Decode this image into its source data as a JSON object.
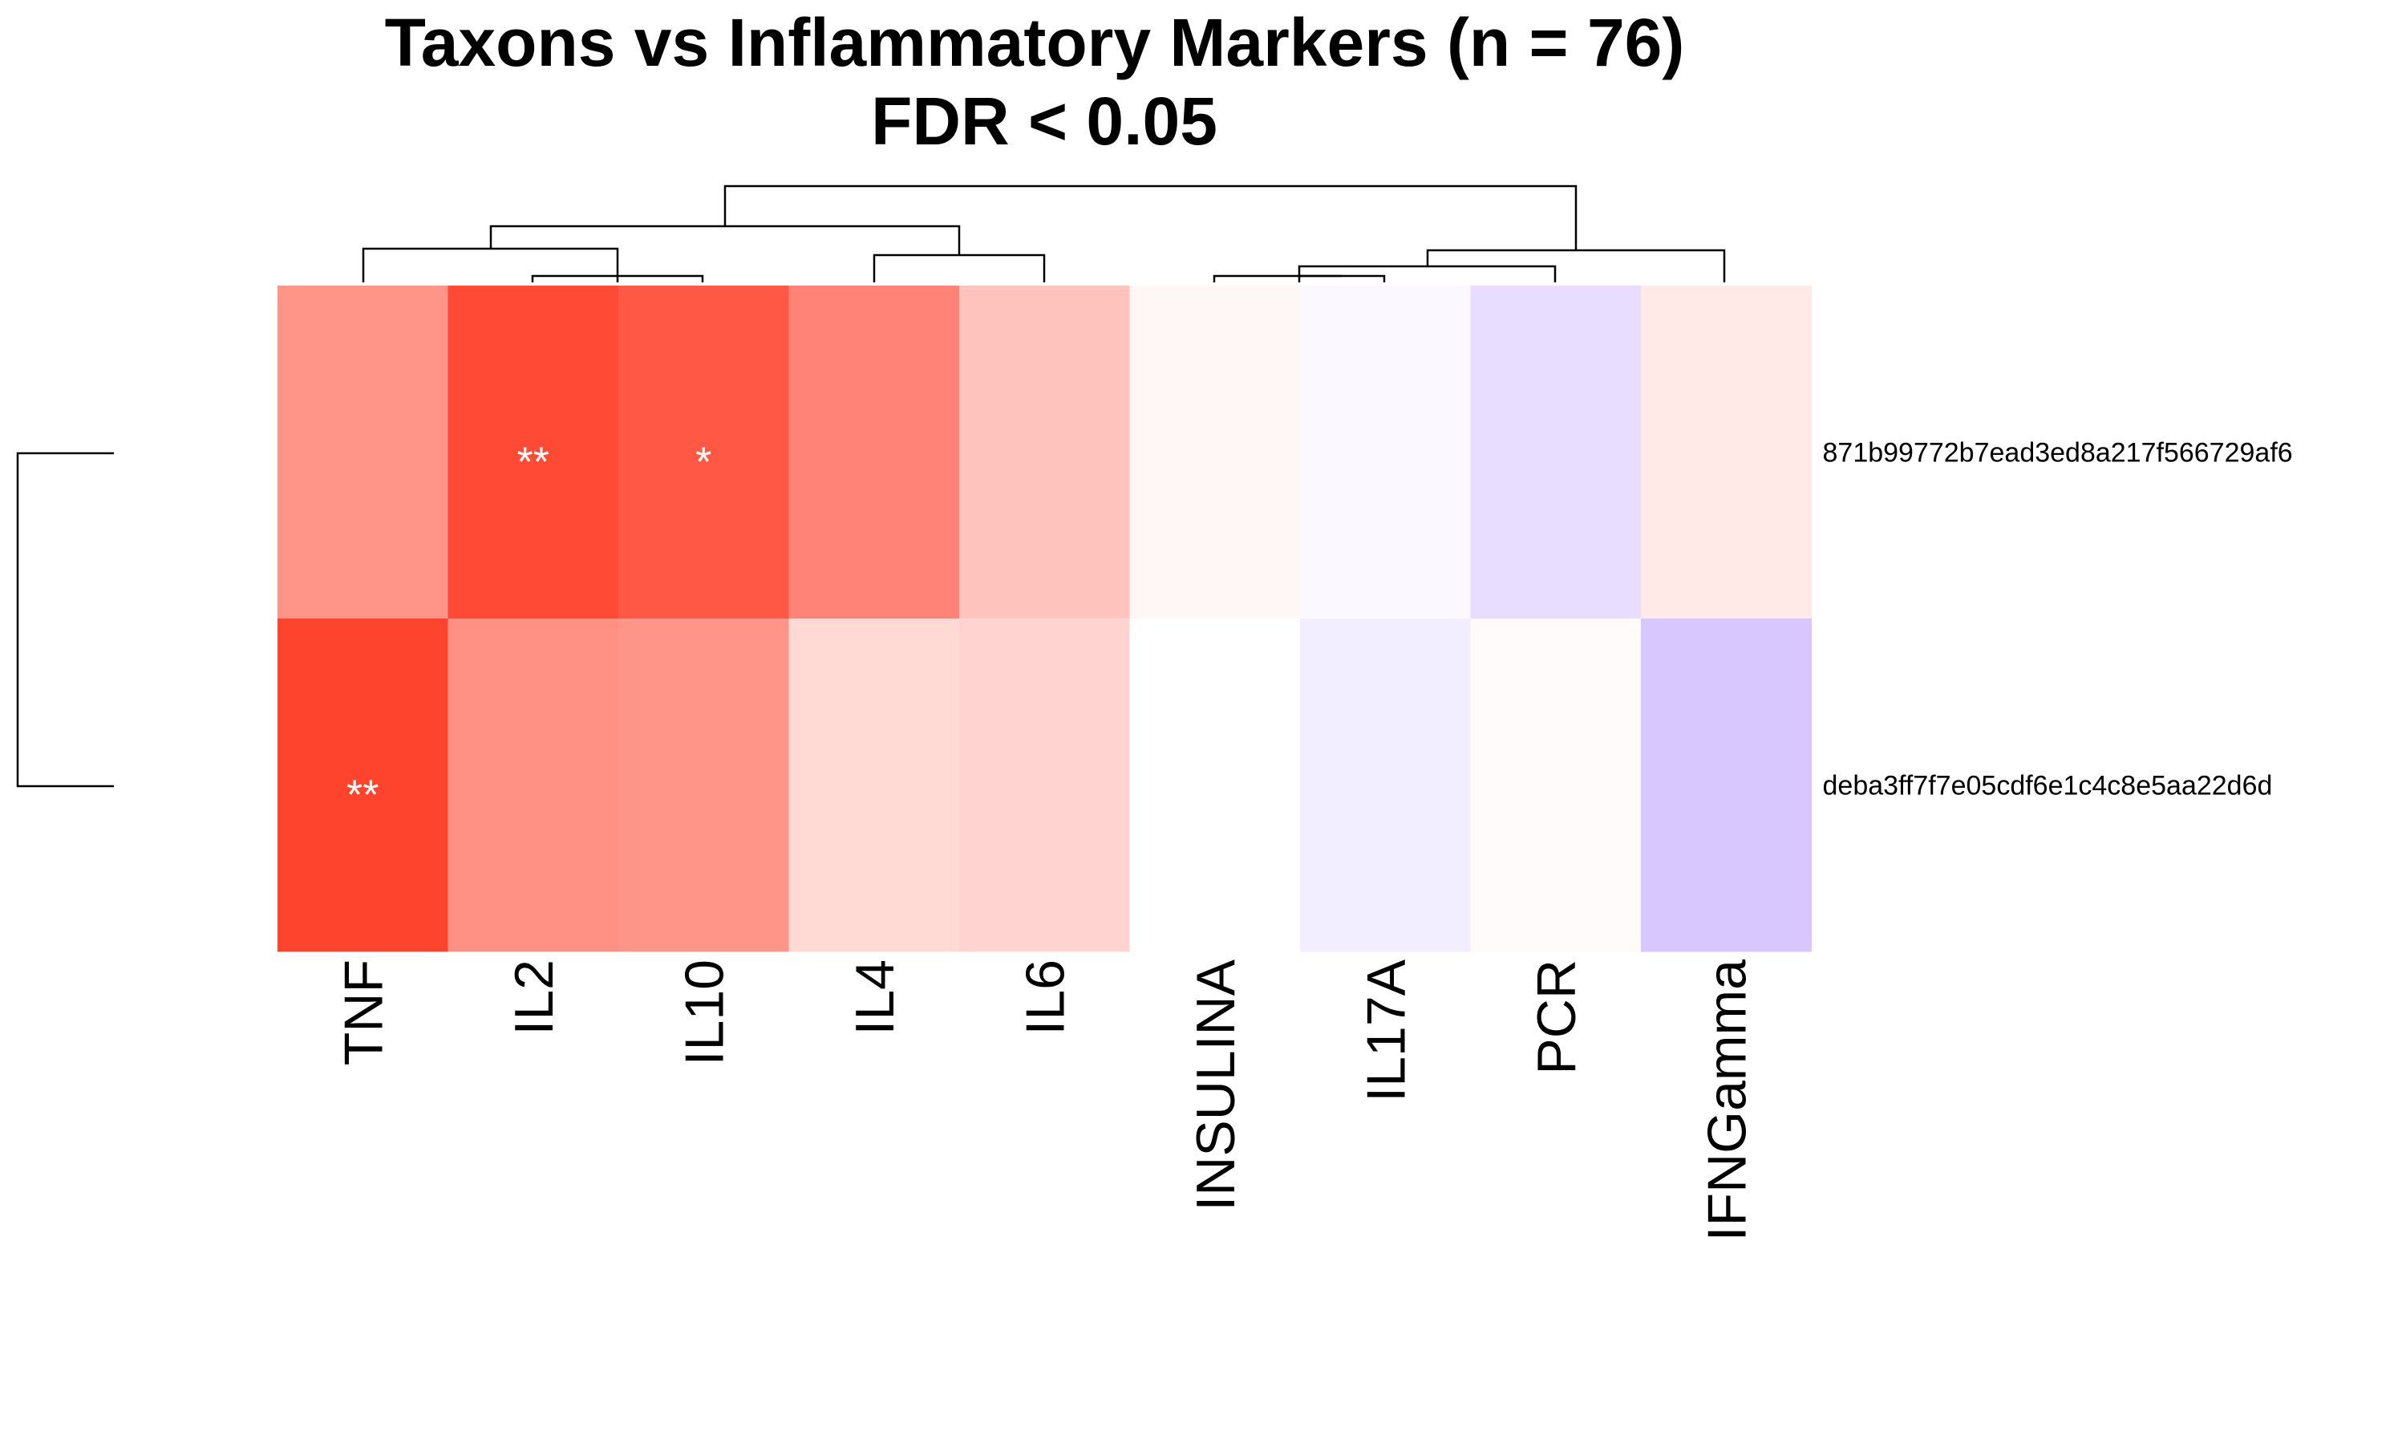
{
  "chart_data": {
    "type": "heatmap",
    "title": "Taxons vs Inflammatory Markers (n = 76)",
    "subtitle": "FDR < 0.05",
    "columns": [
      "TNF",
      "IL2",
      "IL10",
      "IL4",
      "IL6",
      "INSULINA",
      "IL17A",
      "PCR",
      "IFNGamma"
    ],
    "rows": [
      "871b99772b7ead3ed8a217f566729af6",
      "deba3ff7f7e05cdf6e1c4c8e5aa22d6d"
    ],
    "values": [
      [
        0.5,
        0.85,
        0.78,
        0.58,
        0.28,
        0.04,
        -0.02,
        -0.12,
        0.1
      ],
      [
        0.88,
        0.52,
        0.5,
        0.18,
        0.2,
        0.0,
        -0.06,
        0.02,
        -0.2
      ]
    ],
    "significance": [
      [
        "",
        "**",
        "*",
        "",
        "",
        "",
        "",
        "",
        ""
      ],
      [
        "**",
        "",
        "",
        "",
        "",
        "",
        "",
        "",
        ""
      ]
    ],
    "color_scale": {
      "positive": "#ff2a12",
      "zero": "#ffffff",
      "negative": "#d8c6ff"
    },
    "legend": "none"
  }
}
